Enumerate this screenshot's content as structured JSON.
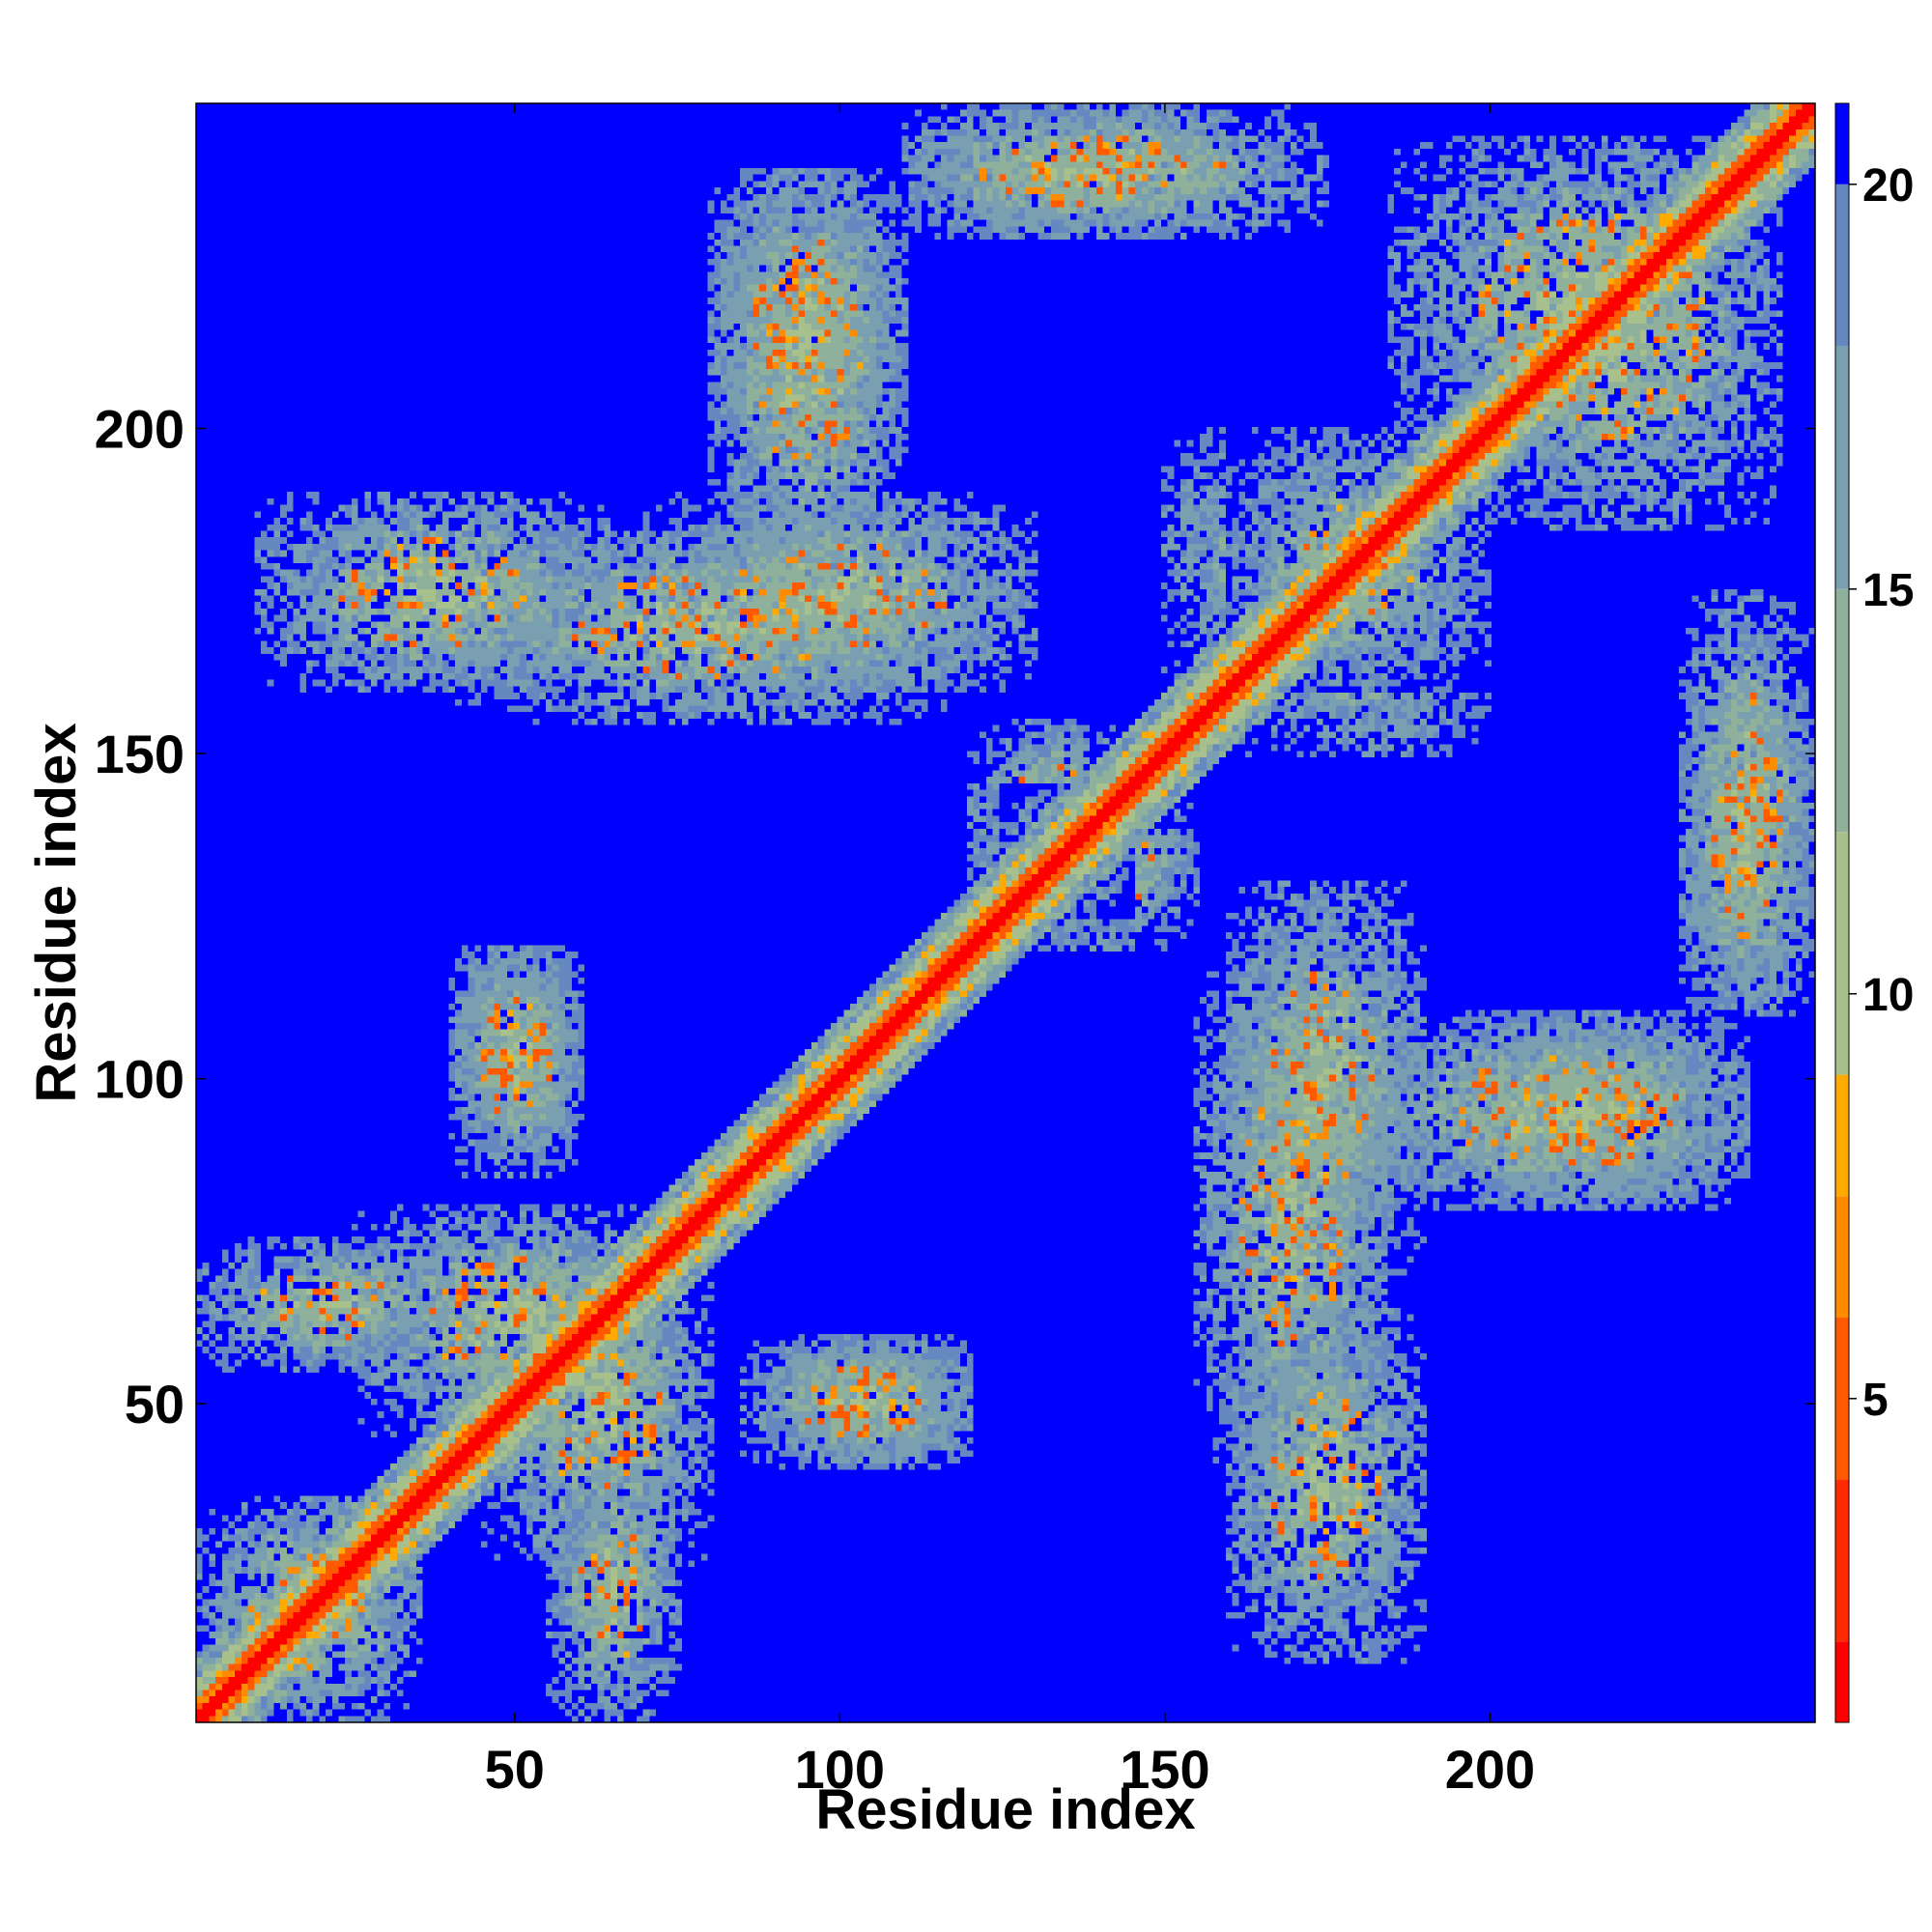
{
  "chart_data": {
    "type": "heatmap",
    "title": "",
    "xlabel": "Residue index",
    "ylabel": "Residue index",
    "n_residues": 250,
    "xlim": [
      1,
      250
    ],
    "ylim": [
      1,
      250
    ],
    "x_ticks": [
      50,
      100,
      150,
      200
    ],
    "y_ticks": [
      50,
      100,
      150,
      200
    ],
    "colorbar": {
      "range": [
        1,
        21
      ],
      "ticks": [
        5,
        10,
        15,
        20
      ],
      "colors": [
        "#ff0000",
        "#ff2a00",
        "#ff5a00",
        "#ff8c00",
        "#ffaa00",
        "#a8c08c",
        "#8fb09a",
        "#7a9fb0",
        "#6688c0",
        "#0000ff"
      ],
      "thresholds": [
        2,
        4,
        6,
        7.5,
        9,
        12,
        15,
        18,
        20
      ]
    },
    "diagonal_band": "values near 1–8 along i = j",
    "contact_regions": [
      {
        "x": [
          1,
          35
        ],
        "y": [
          1,
          35
        ],
        "note": "crossing beta contacts"
      },
      {
        "x": [
          25,
          75
        ],
        "y": [
          45,
          80
        ],
        "note": "off-diagonal cluster"
      },
      {
        "x": [
          55,
          75
        ],
        "y": [
          1,
          40
        ],
        "note": "off-diagonal cluster"
      },
      {
        "x": [
          40,
          60
        ],
        "y": [
          90,
          120
        ],
        "note": "off-diagonal cluster"
      },
      {
        "x": [
          85,
          120
        ],
        "y": [
          40,
          60
        ],
        "note": "off-diagonal cluster"
      },
      {
        "x": [
          10,
          65
        ],
        "y": [
          160,
          190
        ],
        "note": "off-diagonal cluster"
      },
      {
        "x": [
          70,
          130
        ],
        "y": [
          160,
          190
        ],
        "note": "off-diagonal cluster"
      },
      {
        "x": [
          80,
          110
        ],
        "y": [
          195,
          240
        ],
        "note": "off-diagonal cluster"
      },
      {
        "x": [
          110,
          175
        ],
        "y": [
          230,
          250
        ],
        "note": "off-diagonal cluster"
      },
      {
        "x": [
          125,
          155
        ],
        "y": [
          120,
          145
        ],
        "note": "off-diagonal cluster"
      },
      {
        "x": [
          155,
          185
        ],
        "y": [
          40,
          120
        ],
        "note": "off-diagonal cluster"
      },
      {
        "x": [
          160,
          200
        ],
        "y": [
          150,
          200
        ],
        "note": "off-diagonal cluster"
      },
      {
        "x": [
          180,
          240
        ],
        "y": [
          80,
          110
        ],
        "note": "off-diagonal cluster"
      },
      {
        "x": [
          185,
          245
        ],
        "y": [
          195,
          245
        ],
        "note": "off-diagonal cluster"
      },
      {
        "x": [
          230,
          250
        ],
        "y": [
          110,
          160
        ],
        "note": "off-diagonal cluster"
      }
    ]
  }
}
